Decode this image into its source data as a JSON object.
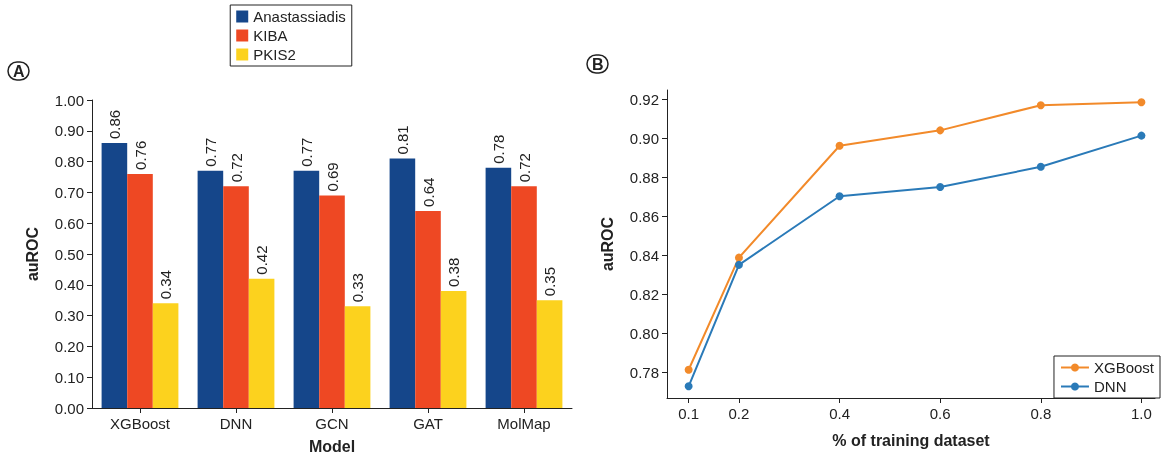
{
  "chart_data": [
    {
      "type": "bar",
      "title": "A",
      "xlabel": "Model",
      "ylabel": "auROC",
      "categories": [
        "XGBoost",
        "DNN",
        "GCN",
        "GAT",
        "MolMap"
      ],
      "series": [
        {
          "name": "Anastassiadis",
          "color": "#15468a",
          "values": [
            0.86,
            0.77,
            0.77,
            0.81,
            0.78
          ]
        },
        {
          "name": "KIBA",
          "color": "#ee4823",
          "values": [
            0.76,
            0.72,
            0.69,
            0.64,
            0.72
          ]
        },
        {
          "name": "PKIS2",
          "color": "#fcd21e",
          "values": [
            0.34,
            0.42,
            0.33,
            0.38,
            0.35
          ]
        }
      ],
      "ylim": [
        0,
        1
      ],
      "yticks": [
        {
          "value": 0,
          "label": "0.00"
        },
        {
          "value": 0.1,
          "label": "0.10"
        },
        {
          "value": 0.2,
          "label": "0.20"
        },
        {
          "value": 0.3,
          "label": "0.30"
        },
        {
          "value": 0.4,
          "label": "0.40"
        },
        {
          "value": 0.5,
          "label": "0.50"
        },
        {
          "value": 0.6,
          "label": "0.60"
        },
        {
          "value": 0.7,
          "label": "0.70"
        },
        {
          "value": 0.8,
          "label": "0.80"
        },
        {
          "value": 0.9,
          "label": "0.90"
        },
        {
          "value": 1,
          "label": "1.00"
        }
      ],
      "data_labels": true,
      "legend": "top",
      "grid": false
    },
    {
      "type": "line",
      "title": "B",
      "xlabel": "% of training dataset",
      "ylabel": "auROC",
      "x": [
        0.1,
        0.2,
        0.4,
        0.6,
        0.8,
        1.0
      ],
      "series": [
        {
          "name": "XGBoost",
          "color": "#f28a2a",
          "values": [
            0.7815,
            0.839,
            0.8964,
            0.9043,
            0.9172,
            0.9187
          ]
        },
        {
          "name": "DNN",
          "color": "#2a7ab8",
          "values": [
            0.773,
            0.8353,
            0.8705,
            0.8752,
            0.8856,
            0.9016
          ]
        }
      ],
      "xlim": [
        0.057,
        1.027
      ],
      "xticks": [
        0.1,
        0.2,
        0.4,
        0.6,
        0.8,
        {
          "value": 1,
          "label": "1.0"
        }
      ],
      "ylim": [
        0.767,
        0.925
      ],
      "yticks": [
        0.78,
        {
          "value": 0.8,
          "label": "0.80"
        },
        0.82,
        0.84,
        0.86,
        0.88,
        {
          "value": 0.9,
          "label": "0.90"
        },
        0.92
      ],
      "marker": "circle",
      "line_style": "solid",
      "legend": "bottom right",
      "grid": false
    }
  ]
}
